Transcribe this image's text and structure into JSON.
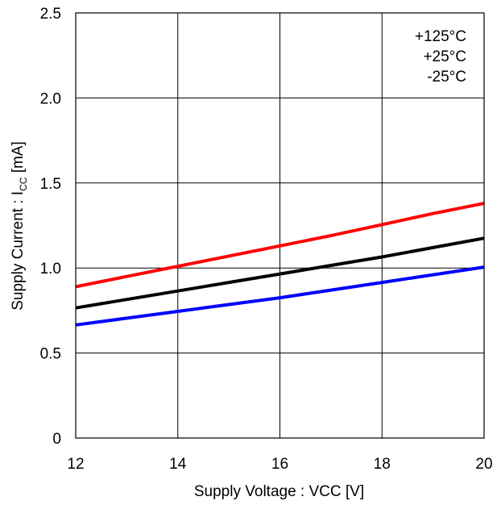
{
  "chart_data": {
    "type": "line",
    "xlabel": "Supply Voltage : VCC [V]",
    "ylabel": {
      "prefix": "Supply Current : I",
      "subscript": "CC",
      "suffix": " [mA]"
    },
    "xlim": [
      12,
      20
    ],
    "ylim": [
      0,
      2.5
    ],
    "xticks": [
      12,
      14,
      16,
      18,
      20
    ],
    "xtick_labels": [
      "12",
      "14",
      "16",
      "18",
      "20"
    ],
    "yticks": [
      0,
      0.5,
      1.0,
      1.5,
      2.0,
      2.5
    ],
    "ytick_labels": [
      "0",
      "0.5",
      "1.0",
      "1.5",
      "2.0",
      "2.5"
    ],
    "grid": true,
    "legend_position": "top-right",
    "series": [
      {
        "name": "+125°C",
        "color": "#ff0000",
        "x": [
          12,
          13,
          14,
          15,
          16,
          17,
          18,
          19,
          20
        ],
        "y": [
          0.89,
          0.95,
          1.01,
          1.07,
          1.13,
          1.19,
          1.255,
          1.32,
          1.38
        ]
      },
      {
        "name": "+25°C",
        "color": "#000000",
        "x": [
          12,
          13,
          14,
          15,
          16,
          17,
          18,
          19,
          20
        ],
        "y": [
          0.765,
          0.815,
          0.865,
          0.915,
          0.965,
          1.015,
          1.065,
          1.12,
          1.175
        ]
      },
      {
        "name": "-25°C",
        "color": "#0000ff",
        "x": [
          12,
          13,
          14,
          15,
          16,
          17,
          18,
          19,
          20
        ],
        "y": [
          0.665,
          0.705,
          0.745,
          0.785,
          0.825,
          0.87,
          0.915,
          0.96,
          1.005
        ]
      }
    ]
  }
}
